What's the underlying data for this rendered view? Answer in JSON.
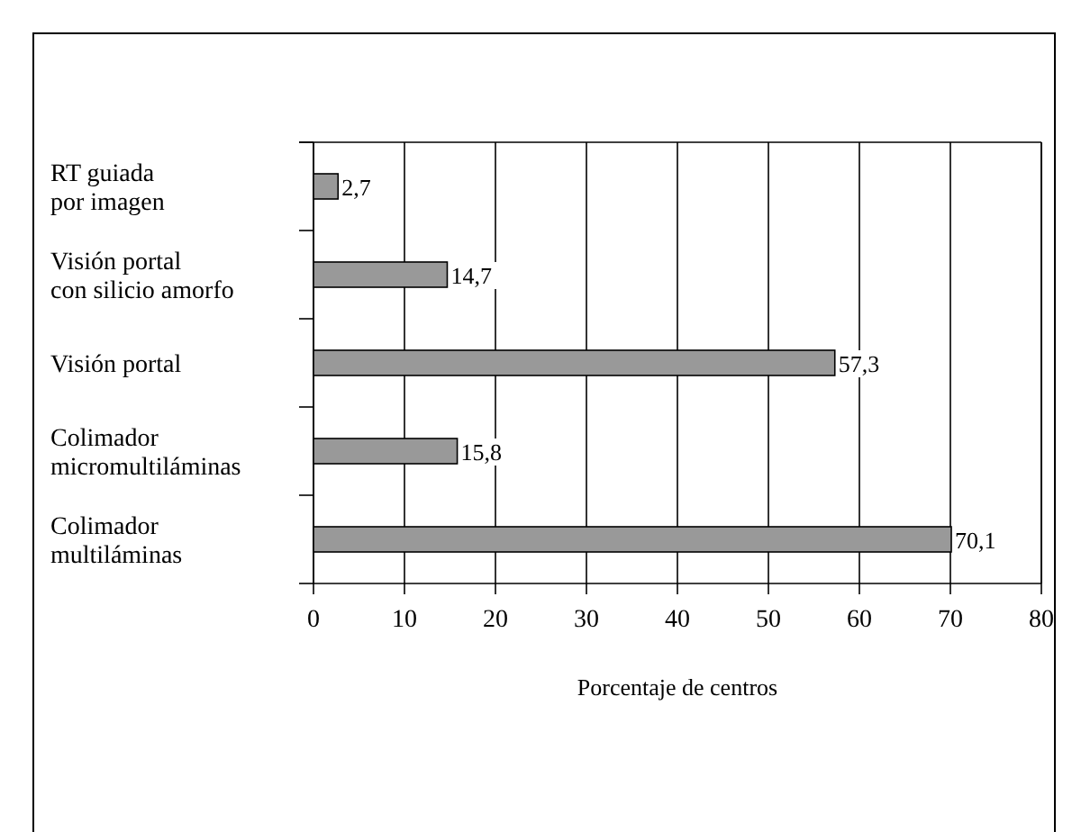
{
  "chart_data": {
    "type": "bar",
    "orientation": "horizontal",
    "xlabel": "Porcentaje de centros",
    "categories": [
      "RT guiada\npor imagen",
      "Visión portal\ncon silicio amorfo",
      "Visión portal",
      "Colimador\nmicromultiláminas",
      "Colimador\nmultiláminas"
    ],
    "values": [
      2.7,
      14.7,
      57.3,
      15.8,
      70.1
    ],
    "color": "#999999",
    "value_labels": [
      "2,7",
      "14,7",
      "57,3",
      "15,8",
      "70,1"
    ],
    "xlim": [
      0,
      80
    ],
    "xticks": [
      0,
      10,
      20,
      30,
      40,
      50,
      60,
      70,
      80
    ],
    "grid": "x"
  }
}
